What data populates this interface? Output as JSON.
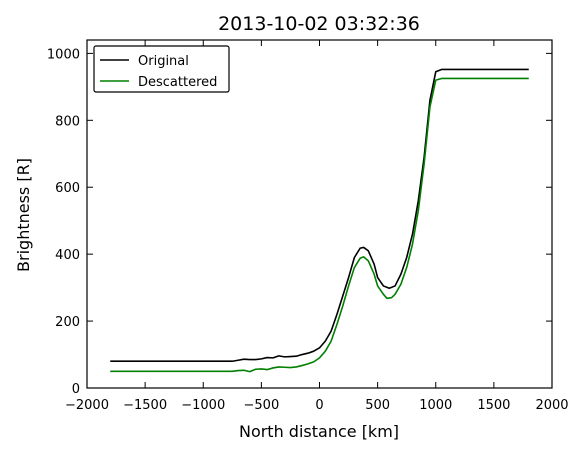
{
  "chart_data": {
    "type": "line",
    "title": "2013-10-02 03:32:36",
    "xlabel": "North distance [km]",
    "ylabel": "Brightness [R]",
    "xlim": [
      -2000,
      2000
    ],
    "ylim": [
      0,
      1040
    ],
    "xticks": [
      -2000,
      -1500,
      -1000,
      -500,
      0,
      500,
      1000,
      1500,
      2000
    ],
    "xtick_labels": [
      "−2000",
      "−1500",
      "−1000",
      "−500",
      "0",
      "500",
      "1000",
      "1500",
      "2000"
    ],
    "yticks": [
      0,
      200,
      400,
      600,
      800,
      1000
    ],
    "ytick_labels": [
      "0",
      "200",
      "400",
      "600",
      "800",
      "1000"
    ],
    "grid": false,
    "legend_position": "top-left",
    "series": [
      {
        "name": "Original",
        "color": "#000000",
        "points": [
          [
            -1800,
            80
          ],
          [
            -1500,
            80
          ],
          [
            -1000,
            80
          ],
          [
            -750,
            80
          ],
          [
            -700,
            83
          ],
          [
            -650,
            86
          ],
          [
            -600,
            85
          ],
          [
            -550,
            85
          ],
          [
            -500,
            87
          ],
          [
            -450,
            91
          ],
          [
            -400,
            90
          ],
          [
            -350,
            96
          ],
          [
            -300,
            93
          ],
          [
            -250,
            94
          ],
          [
            -200,
            95
          ],
          [
            -150,
            100
          ],
          [
            -100,
            104
          ],
          [
            -50,
            110
          ],
          [
            0,
            120
          ],
          [
            50,
            140
          ],
          [
            100,
            170
          ],
          [
            150,
            220
          ],
          [
            200,
            275
          ],
          [
            250,
            330
          ],
          [
            300,
            390
          ],
          [
            350,
            418
          ],
          [
            380,
            420
          ],
          [
            420,
            410
          ],
          [
            470,
            370
          ],
          [
            500,
            330
          ],
          [
            550,
            305
          ],
          [
            600,
            298
          ],
          [
            650,
            305
          ],
          [
            700,
            340
          ],
          [
            750,
            390
          ],
          [
            800,
            460
          ],
          [
            850,
            560
          ],
          [
            900,
            690
          ],
          [
            950,
            860
          ],
          [
            1000,
            945
          ],
          [
            1050,
            952
          ],
          [
            1800,
            952
          ]
        ]
      },
      {
        "name": "Descattered",
        "color": "#008000",
        "points": [
          [
            -1800,
            50
          ],
          [
            -1500,
            50
          ],
          [
            -1000,
            50
          ],
          [
            -750,
            50
          ],
          [
            -700,
            52
          ],
          [
            -650,
            53
          ],
          [
            -600,
            49
          ],
          [
            -550,
            56
          ],
          [
            -500,
            57
          ],
          [
            -450,
            55
          ],
          [
            -400,
            60
          ],
          [
            -350,
            63
          ],
          [
            -300,
            62
          ],
          [
            -250,
            61
          ],
          [
            -200,
            63
          ],
          [
            -150,
            67
          ],
          [
            -100,
            72
          ],
          [
            -50,
            78
          ],
          [
            0,
            90
          ],
          [
            50,
            110
          ],
          [
            100,
            140
          ],
          [
            150,
            190
          ],
          [
            200,
            245
          ],
          [
            250,
            305
          ],
          [
            300,
            360
          ],
          [
            350,
            388
          ],
          [
            380,
            392
          ],
          [
            420,
            380
          ],
          [
            470,
            340
          ],
          [
            500,
            305
          ],
          [
            550,
            280
          ],
          [
            580,
            268
          ],
          [
            620,
            270
          ],
          [
            650,
            280
          ],
          [
            700,
            310
          ],
          [
            750,
            360
          ],
          [
            800,
            430
          ],
          [
            850,
            530
          ],
          [
            900,
            670
          ],
          [
            950,
            840
          ],
          [
            1000,
            920
          ],
          [
            1050,
            925
          ],
          [
            1800,
            925
          ]
        ]
      }
    ]
  }
}
